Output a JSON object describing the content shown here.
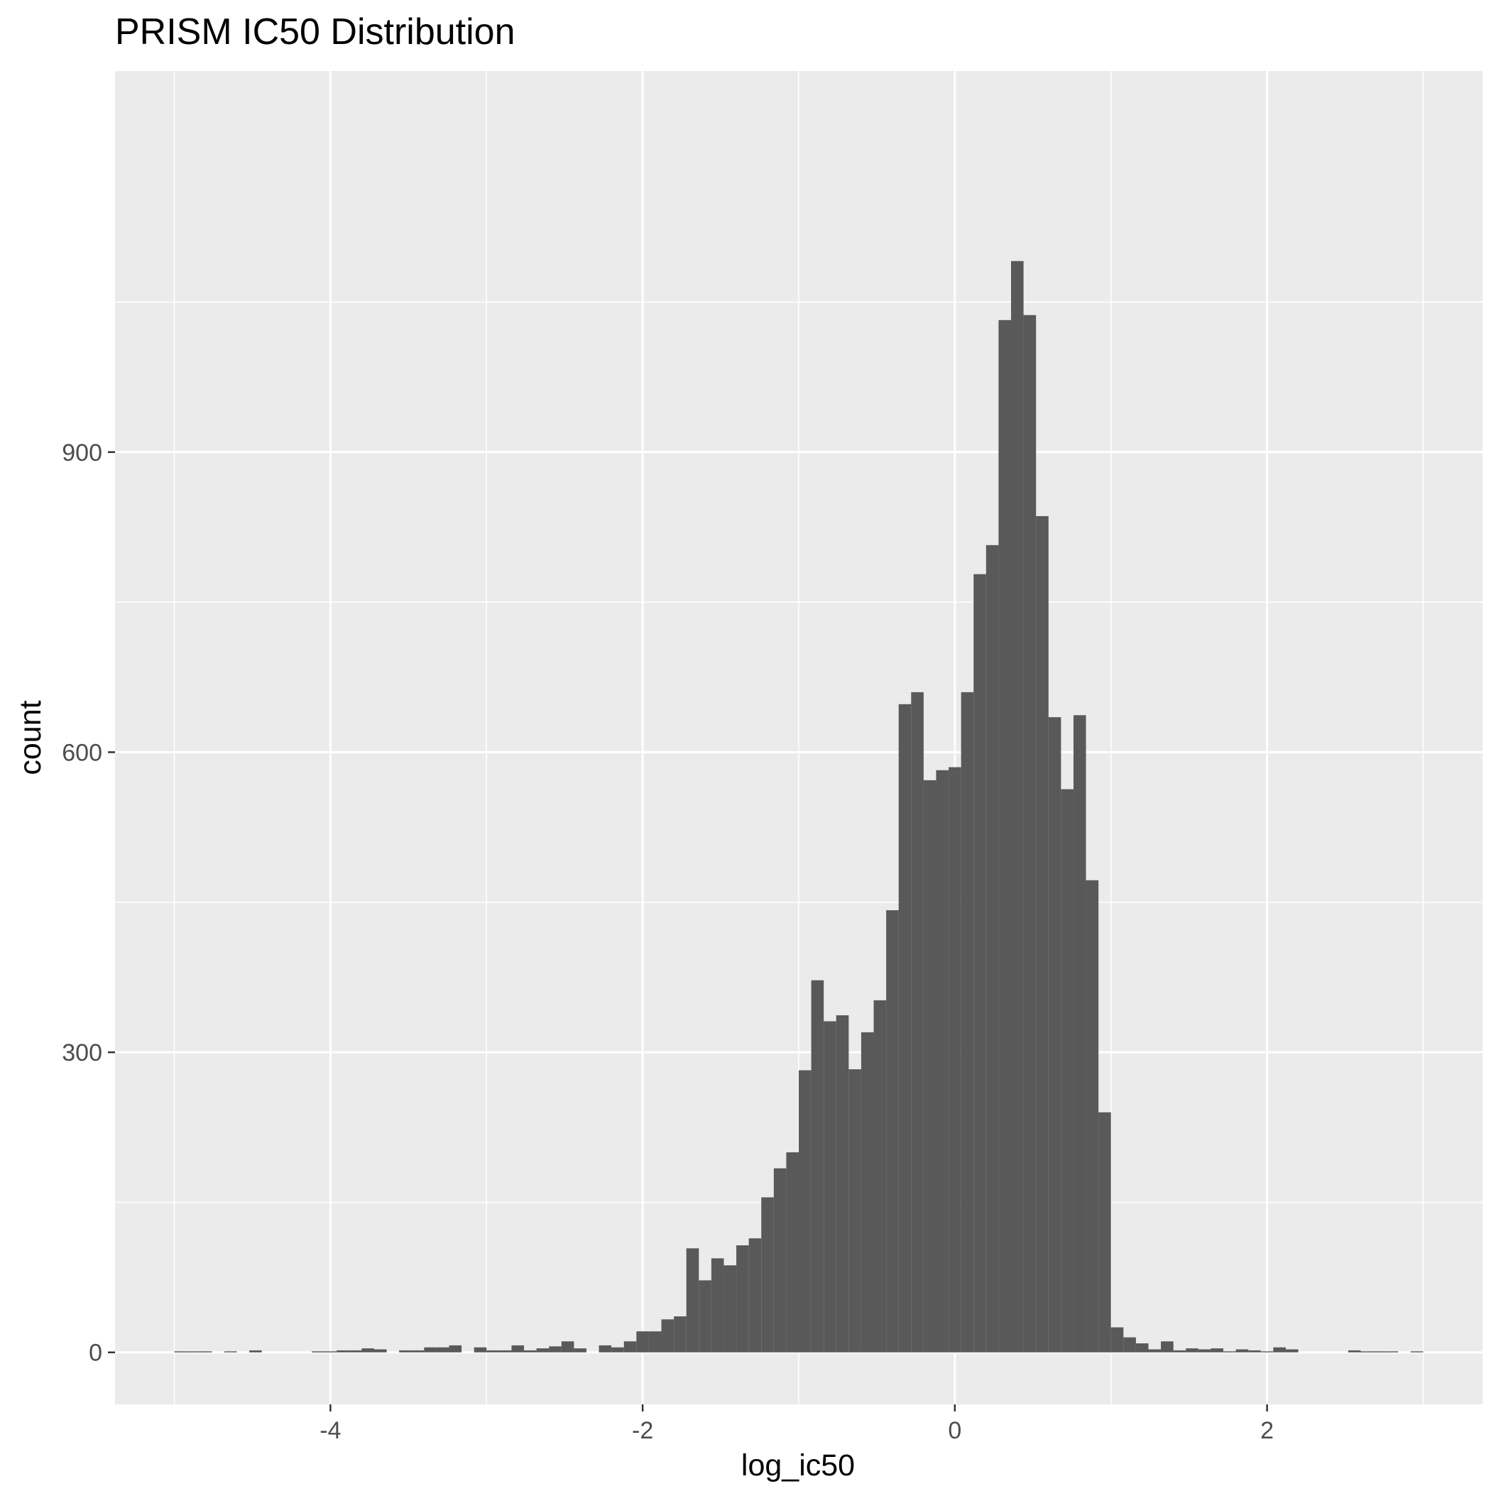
{
  "chart_data": {
    "type": "bar",
    "title": "PRISM IC50 Distribution",
    "xlabel": "log_ic50",
    "ylabel": "count",
    "xlim": [
      -5.38,
      3.38
    ],
    "ylim": [
      -52,
      1281
    ],
    "x_ticks": [
      -4,
      -2,
      0,
      2
    ],
    "x_tick_labels": [
      "-4",
      "-2",
      "0",
      "2"
    ],
    "y_ticks": [
      0,
      300,
      600,
      900
    ],
    "y_tick_labels": [
      "0",
      "300",
      "600",
      "900"
    ],
    "bin_width": 0.08,
    "grid": true,
    "colors": {
      "panel": "#EBEBEB",
      "grid": "#FFFFFF",
      "bar": "#595959",
      "tick": "#333333"
    },
    "bins": [
      {
        "x": -4.96,
        "count": 1
      },
      {
        "x": -4.88,
        "count": 1
      },
      {
        "x": -4.8,
        "count": 1
      },
      {
        "x": -4.64,
        "count": 1
      },
      {
        "x": -4.48,
        "count": 2
      },
      {
        "x": -4.08,
        "count": 1
      },
      {
        "x": -4.0,
        "count": 1
      },
      {
        "x": -3.92,
        "count": 2
      },
      {
        "x": -3.84,
        "count": 2
      },
      {
        "x": -3.76,
        "count": 4
      },
      {
        "x": -3.68,
        "count": 3
      },
      {
        "x": -3.52,
        "count": 2
      },
      {
        "x": -3.44,
        "count": 2
      },
      {
        "x": -3.36,
        "count": 5
      },
      {
        "x": -3.28,
        "count": 5
      },
      {
        "x": -3.2,
        "count": 7
      },
      {
        "x": -3.04,
        "count": 5
      },
      {
        "x": -2.96,
        "count": 2
      },
      {
        "x": -2.88,
        "count": 2
      },
      {
        "x": -2.8,
        "count": 7
      },
      {
        "x": -2.72,
        "count": 2
      },
      {
        "x": -2.64,
        "count": 4
      },
      {
        "x": -2.56,
        "count": 6
      },
      {
        "x": -2.48,
        "count": 11
      },
      {
        "x": -2.4,
        "count": 4
      },
      {
        "x": -2.24,
        "count": 7
      },
      {
        "x": -2.16,
        "count": 5
      },
      {
        "x": -2.08,
        "count": 11
      },
      {
        "x": -2.0,
        "count": 21
      },
      {
        "x": -1.92,
        "count": 21
      },
      {
        "x": -1.84,
        "count": 33
      },
      {
        "x": -1.76,
        "count": 36
      },
      {
        "x": -1.68,
        "count": 104
      },
      {
        "x": -1.6,
        "count": 72
      },
      {
        "x": -1.52,
        "count": 94
      },
      {
        "x": -1.44,
        "count": 87
      },
      {
        "x": -1.36,
        "count": 107
      },
      {
        "x": -1.28,
        "count": 114
      },
      {
        "x": -1.2,
        "count": 155
      },
      {
        "x": -1.12,
        "count": 184
      },
      {
        "x": -1.04,
        "count": 200
      },
      {
        "x": -0.96,
        "count": 282
      },
      {
        "x": -0.88,
        "count": 372
      },
      {
        "x": -0.8,
        "count": 331
      },
      {
        "x": -0.72,
        "count": 337
      },
      {
        "x": -0.64,
        "count": 283
      },
      {
        "x": -0.56,
        "count": 320
      },
      {
        "x": -0.48,
        "count": 352
      },
      {
        "x": -0.4,
        "count": 442
      },
      {
        "x": -0.32,
        "count": 648
      },
      {
        "x": -0.24,
        "count": 660
      },
      {
        "x": -0.16,
        "count": 572
      },
      {
        "x": -0.08,
        "count": 582
      },
      {
        "x": 0.0,
        "count": 585
      },
      {
        "x": 0.08,
        "count": 660
      },
      {
        "x": 0.16,
        "count": 778
      },
      {
        "x": 0.24,
        "count": 807
      },
      {
        "x": 0.32,
        "count": 1032
      },
      {
        "x": 0.4,
        "count": 1091
      },
      {
        "x": 0.48,
        "count": 1037
      },
      {
        "x": 0.56,
        "count": 836
      },
      {
        "x": 0.64,
        "count": 635
      },
      {
        "x": 0.72,
        "count": 563
      },
      {
        "x": 0.8,
        "count": 637
      },
      {
        "x": 0.88,
        "count": 472
      },
      {
        "x": 0.96,
        "count": 240
      },
      {
        "x": 1.04,
        "count": 25
      },
      {
        "x": 1.12,
        "count": 15
      },
      {
        "x": 1.2,
        "count": 9
      },
      {
        "x": 1.28,
        "count": 3
      },
      {
        "x": 1.36,
        "count": 11
      },
      {
        "x": 1.44,
        "count": 2
      },
      {
        "x": 1.52,
        "count": 4
      },
      {
        "x": 1.6,
        "count": 3
      },
      {
        "x": 1.68,
        "count": 4
      },
      {
        "x": 1.76,
        "count": 1
      },
      {
        "x": 1.84,
        "count": 3
      },
      {
        "x": 1.92,
        "count": 2
      },
      {
        "x": 2.0,
        "count": 1
      },
      {
        "x": 2.08,
        "count": 5
      },
      {
        "x": 2.16,
        "count": 3
      },
      {
        "x": 2.56,
        "count": 2
      },
      {
        "x": 2.64,
        "count": 1
      },
      {
        "x": 2.72,
        "count": 1
      },
      {
        "x": 2.8,
        "count": 1
      },
      {
        "x": 2.96,
        "count": 1
      }
    ]
  }
}
